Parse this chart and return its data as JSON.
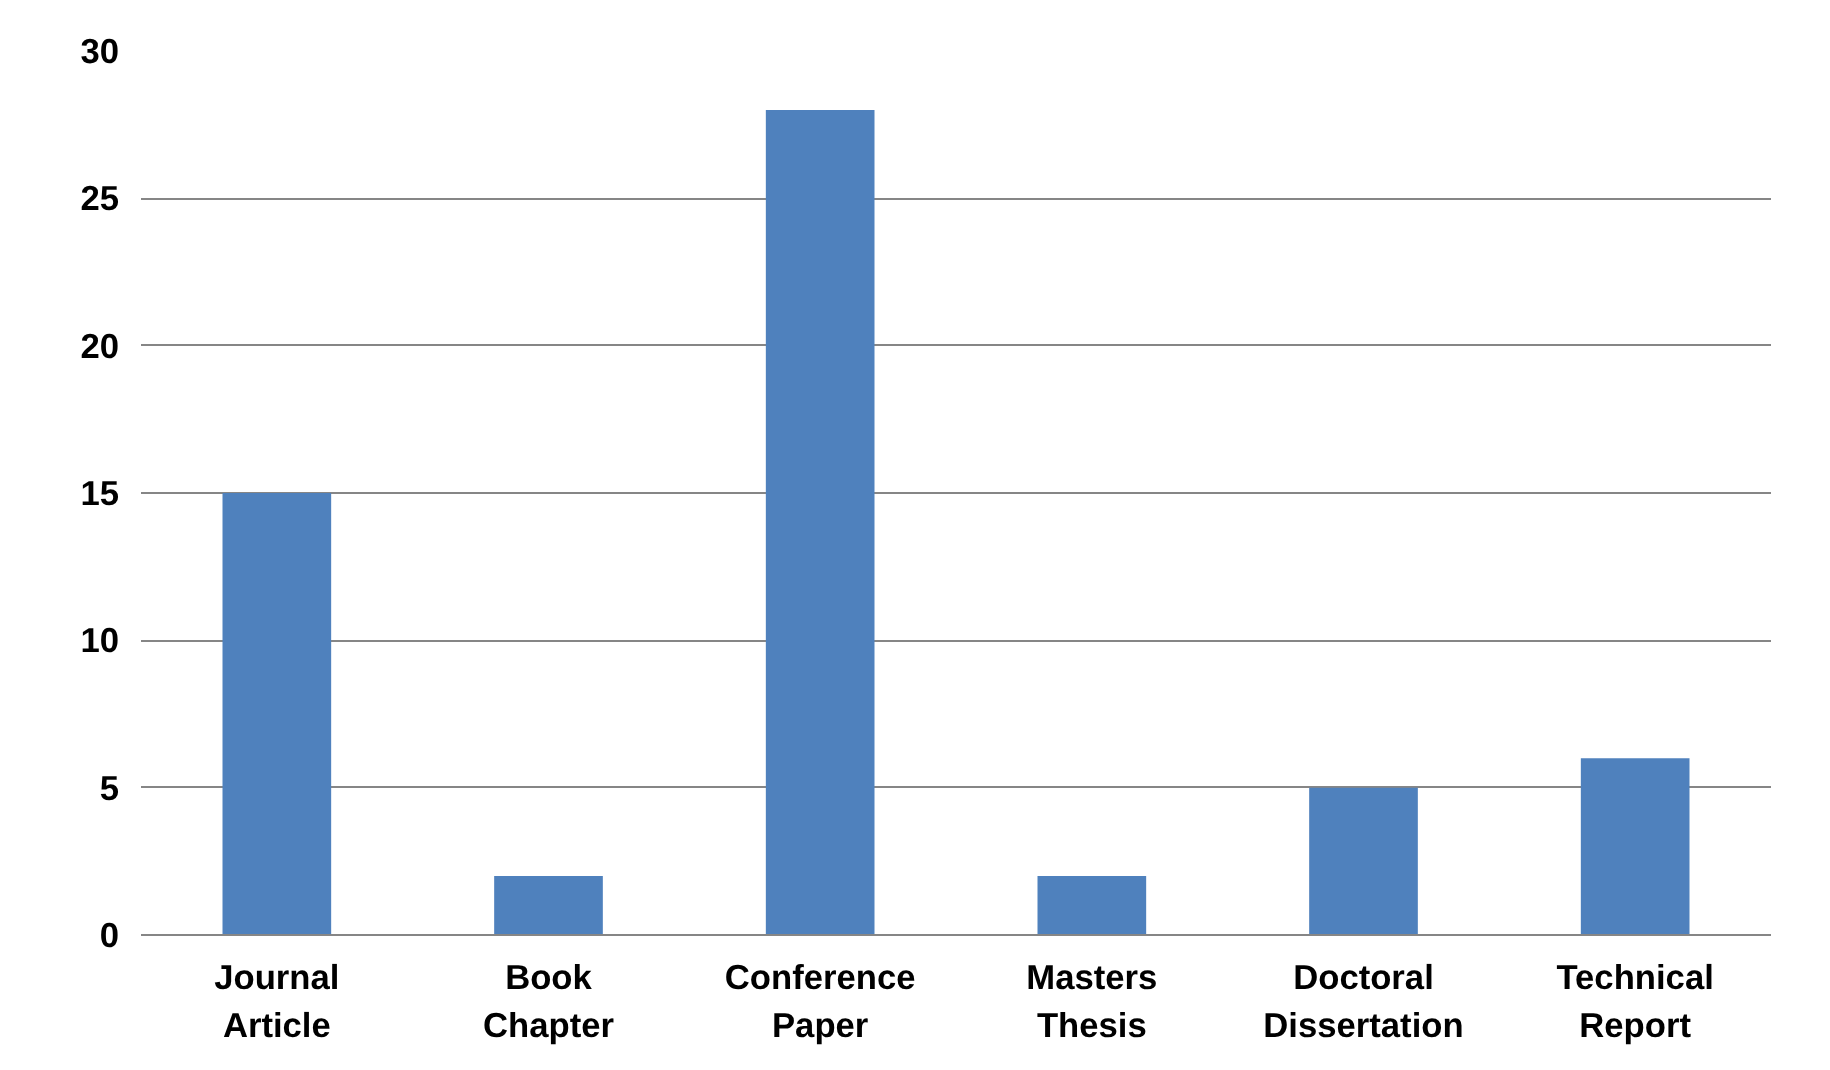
{
  "chart_data": {
    "type": "bar",
    "categories": [
      "Journal\nArticle",
      "Book\nChapter",
      "Conference\nPaper",
      "Masters\nThesis",
      "Doctoral\nDissertation",
      "Technical\nReport"
    ],
    "values": [
      15,
      2,
      28,
      2,
      5,
      6
    ],
    "color": "#4f81bd",
    "ylim": [
      0,
      30
    ],
    "yticks": [
      0,
      5,
      10,
      15,
      20,
      25,
      30
    ],
    "grid": "y"
  }
}
